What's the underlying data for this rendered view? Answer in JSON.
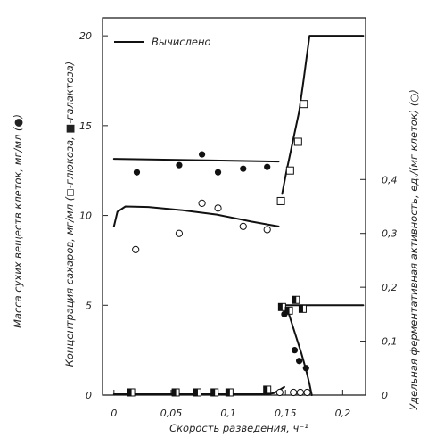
{
  "chart_data": {
    "type": "scatter",
    "xlabel": "Скорость разведения, ч⁻¹",
    "ylabel_left_outer": "Масса сухих веществ клеток, мг/мл (●)",
    "ylabel_left_inner": "Концентрация сахаров, мг/мл (◻-глюкоза, ■-галактоза)",
    "ylabel_right": "Удельная ферментативная активность, ед./(мг клеток) (○)",
    "legend": {
      "label": "Вычислено",
      "placement": "top-left"
    },
    "grid": false,
    "x_axis": {
      "range": [
        -0.01,
        0.22
      ],
      "ticks": [
        0,
        0.05,
        0.1,
        0.15,
        0.2
      ],
      "tick_labels": [
        "0",
        "0,05",
        "0,1",
        "0,15",
        "0,2"
      ]
    },
    "y_left": {
      "range": [
        0,
        21
      ],
      "ticks": [
        0,
        5,
        10,
        15,
        20
      ],
      "tick_labels": [
        "0",
        "5",
        "10",
        "15",
        "20"
      ]
    },
    "y_right": {
      "range": [
        0,
        0.7
      ],
      "ticks": [
        0,
        0.1,
        0.2,
        0.3,
        0.4
      ],
      "tick_labels": [
        "0",
        "0,1",
        "0,2",
        "0,3",
        "0,4"
      ]
    },
    "series": [
      {
        "name": "●",
        "axis": "left",
        "marker": "filled-circle",
        "points": [
          [
            0.02,
            12.4
          ],
          [
            0.057,
            12.8
          ],
          [
            0.077,
            13.4
          ],
          [
            0.091,
            12.4
          ],
          [
            0.113,
            12.6
          ],
          [
            0.134,
            12.7
          ],
          [
            0.149,
            4.5
          ],
          [
            0.158,
            2.5
          ],
          [
            0.162,
            1.9
          ],
          [
            0.168,
            1.5
          ]
        ]
      },
      {
        "name": "○",
        "axis": "right",
        "marker": "open-circle",
        "points": [
          [
            0.019,
            0.27
          ],
          [
            0.057,
            0.3
          ],
          [
            0.077,
            0.356
          ],
          [
            0.091,
            0.347
          ],
          [
            0.113,
            0.313
          ],
          [
            0.134,
            0.307
          ],
          [
            0.145,
            0.005
          ],
          [
            0.157,
            0.005
          ],
          [
            0.163,
            0.005
          ],
          [
            0.169,
            0.005
          ]
        ]
      },
      {
        "name": "◻",
        "axis": "left",
        "marker": "open-square",
        "points": [
          [
            0.146,
            10.8
          ],
          [
            0.154,
            12.5
          ],
          [
            0.161,
            14.1
          ],
          [
            0.166,
            16.2
          ]
        ]
      },
      {
        "name": "■",
        "axis": "left",
        "marker": "half-square",
        "points": [
          [
            0.015,
            0.15
          ],
          [
            0.054,
            0.15
          ],
          [
            0.073,
            0.15
          ],
          [
            0.088,
            0.15
          ],
          [
            0.101,
            0.15
          ],
          [
            0.134,
            0.3
          ],
          [
            0.147,
            4.9
          ],
          [
            0.153,
            4.7
          ],
          [
            0.159,
            5.3
          ],
          [
            0.165,
            4.8
          ]
        ]
      }
    ],
    "curves": [
      {
        "name": "Вычислено",
        "axis": "left",
        "points": [
          [
            0.0,
            13.15
          ],
          [
            0.144,
            13.0
          ]
        ]
      },
      {
        "name": "Вычислено",
        "axis": "left",
        "points": [
          [
            0.147,
            11.2
          ],
          [
            0.151,
            12.5
          ],
          [
            0.156,
            14.0
          ],
          [
            0.162,
            15.8
          ],
          [
            0.166,
            17.6
          ],
          [
            0.1685,
            18.8
          ],
          [
            0.171,
            20.0
          ],
          [
            0.218,
            20.0
          ]
        ]
      },
      {
        "name": "Вычислено",
        "axis": "right",
        "points": [
          [
            0.0,
            0.313
          ],
          [
            0.003,
            0.34
          ],
          [
            0.01,
            0.35
          ],
          [
            0.03,
            0.349
          ],
          [
            0.06,
            0.343
          ],
          [
            0.09,
            0.335
          ],
          [
            0.12,
            0.322
          ],
          [
            0.144,
            0.313
          ]
        ]
      },
      {
        "name": "Вычислено",
        "axis": "left",
        "points": [
          [
            0.147,
            5.0
          ],
          [
            0.152,
            4.7
          ],
          [
            0.158,
            3.5
          ],
          [
            0.164,
            2.3
          ],
          [
            0.168,
            1.4
          ],
          [
            0.171,
            0.6
          ],
          [
            0.173,
            0.0
          ]
        ]
      },
      {
        "name": "Вычислено",
        "axis": "left",
        "points": [
          [
            0.147,
            5.0
          ],
          [
            0.218,
            5.0
          ]
        ]
      },
      {
        "name": "Вычислено",
        "axis": "left",
        "points": [
          [
            0.0,
            0.05
          ],
          [
            0.135,
            0.05
          ],
          [
            0.14,
            0.12
          ],
          [
            0.145,
            0.3
          ],
          [
            0.149,
            0.45
          ]
        ]
      }
    ]
  }
}
